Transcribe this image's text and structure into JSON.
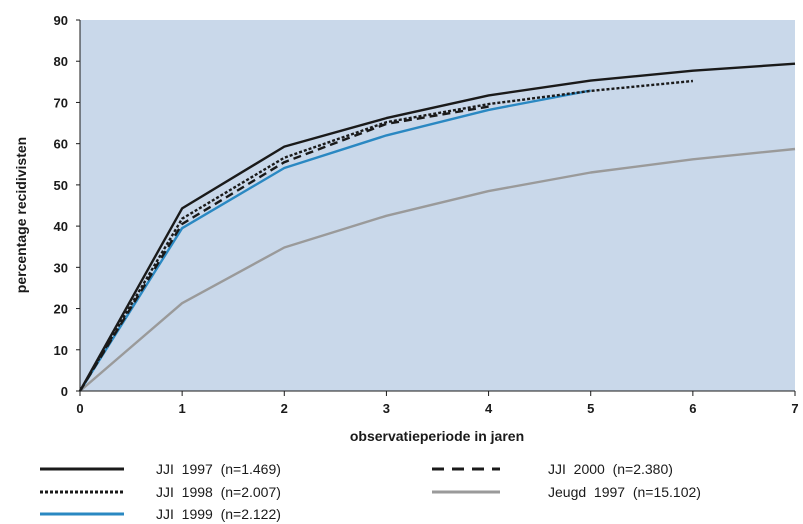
{
  "chart_data": {
    "type": "line",
    "title": "",
    "xlabel": "observatieperiode in jaren",
    "ylabel": "percentage recidivisten",
    "xlim": [
      0,
      7
    ],
    "ylim": [
      0,
      90
    ],
    "x_ticks": [
      "0",
      "1",
      "2",
      "3",
      "4",
      "5",
      "6",
      "7"
    ],
    "y_ticks": [
      "0",
      "10",
      "20",
      "30",
      "40",
      "50",
      "60",
      "70",
      "80",
      "90"
    ],
    "grid": false,
    "plot_background": "#c9d8ea",
    "legend_position": "bottom",
    "series": [
      {
        "name": "JJI 1997 (n=1.469)",
        "color": "#1a1a1a",
        "style": "solid",
        "x": [
          0,
          1,
          2,
          3,
          4,
          5,
          6,
          7
        ],
        "values": [
          0,
          44.3,
          59.3,
          66.2,
          71.7,
          75.3,
          77.7,
          79.4
        ]
      },
      {
        "name": "JJI 1998 (n=2.007)",
        "color": "#1a1a1a",
        "style": "dotted",
        "x": [
          0,
          1,
          2,
          3,
          4,
          5,
          6
        ],
        "values": [
          0,
          41.8,
          56.6,
          65.2,
          69.6,
          72.8,
          75.2
        ]
      },
      {
        "name": "JJI 1999 (n=2.122)",
        "color": "#2a88c2",
        "style": "solid",
        "x": [
          0,
          1,
          2,
          3,
          4,
          5
        ],
        "values": [
          0,
          39.5,
          54.1,
          62.0,
          68.2,
          72.9
        ]
      },
      {
        "name": "JJI 2000 (n=2.380)",
        "color": "#1a1a1a",
        "style": "dashed",
        "x": [
          0,
          1,
          2,
          3,
          4
        ],
        "values": [
          0,
          40.5,
          55.5,
          64.8,
          69.0
        ]
      },
      {
        "name": "Jeugd 1997 (n=15.102)",
        "color": "#9a9a9a",
        "style": "solid",
        "x": [
          0,
          1,
          2,
          3,
          4,
          5,
          6,
          7
        ],
        "values": [
          0,
          21.3,
          34.8,
          42.5,
          48.5,
          53.0,
          56.2,
          58.7
        ]
      }
    ]
  },
  "legend": {
    "items": [
      {
        "label": "JJI  1997  (n=1.469)"
      },
      {
        "label": "JJI  1998  (n=2.007)"
      },
      {
        "label": "JJI  1999  (n=2.122)"
      },
      {
        "label": "JJI  2000  (n=2.380)"
      },
      {
        "label": "Jeugd  1997  (n=15.102)"
      }
    ]
  }
}
